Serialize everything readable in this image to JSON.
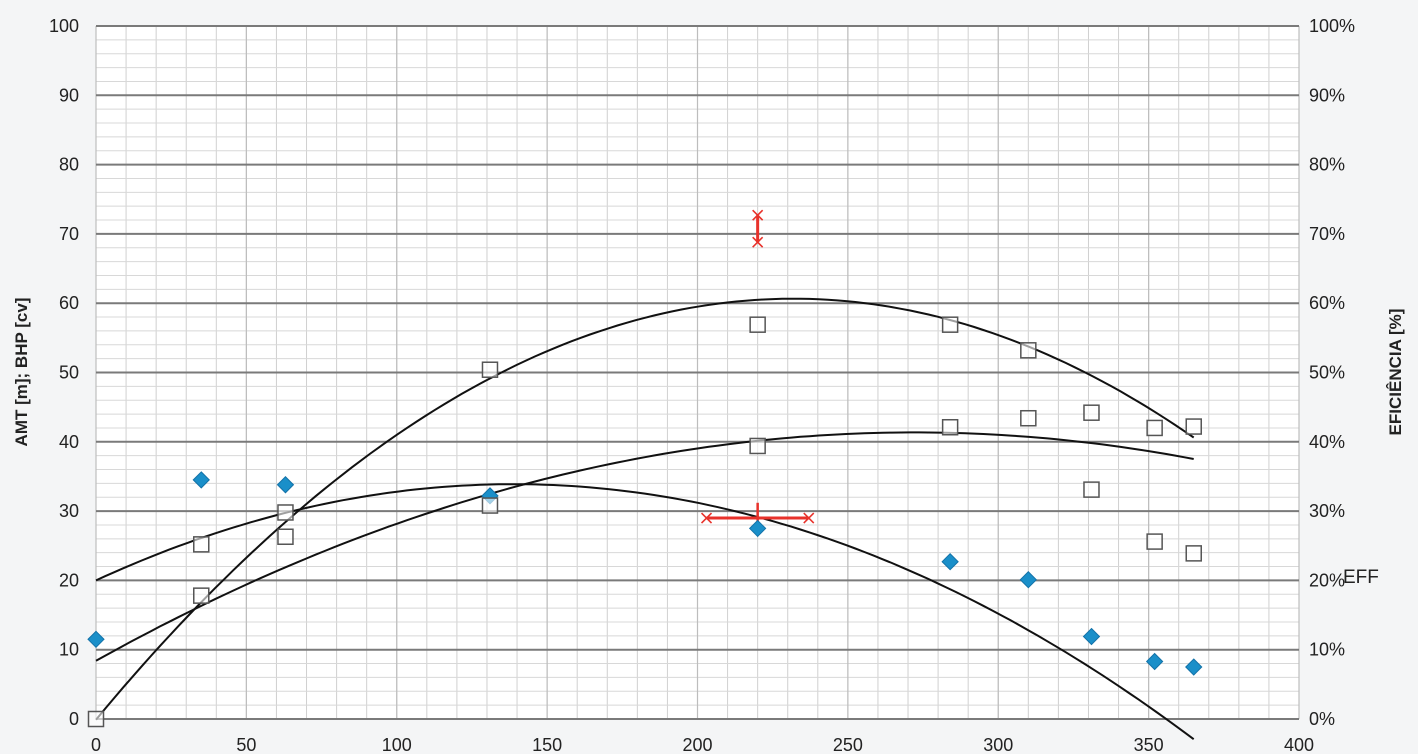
{
  "chart_data": {
    "type": "scatter",
    "title": "",
    "xlabel": "",
    "ylabel": "AMT [m]; BHP [cv]",
    "y2label": "EFICIÊNCIA [%]",
    "xlim": [
      0,
      400
    ],
    "ylim": [
      0,
      100
    ],
    "y2lim": [
      0,
      100
    ],
    "x_ticks": [
      "0",
      "50",
      "100",
      "150",
      "200",
      "250",
      "300",
      "350",
      "400"
    ],
    "y_ticks": [
      "0",
      "10",
      "20",
      "30",
      "40",
      "50",
      "60",
      "70",
      "80",
      "90",
      "100"
    ],
    "y2_ticks": [
      "0%",
      "10%",
      "20%",
      "30%",
      "40%",
      "50%",
      "60%",
      "70%",
      "80%",
      "90%",
      "100%"
    ],
    "grid": true,
    "annotation": "EFF",
    "colors": {
      "blue_points": "#1a8fc9",
      "error_bars": "#e8322b",
      "curves": "#111111",
      "squares": "#555555"
    },
    "series": [
      {
        "marker": "diamond",
        "points": [
          [
            0,
            11.5
          ],
          [
            35,
            34.5
          ],
          [
            63,
            33.8
          ],
          [
            131,
            32.2
          ],
          [
            220,
            27.5
          ],
          [
            284,
            22.7
          ],
          [
            310,
            20.1
          ],
          [
            331,
            11.9
          ],
          [
            352,
            8.3
          ],
          [
            365,
            7.5
          ]
        ]
      },
      {
        "marker": "square",
        "points": [
          [
            0,
            0
          ],
          [
            35,
            25.2
          ],
          [
            35,
            17.8
          ],
          [
            63,
            29.8
          ],
          [
            63,
            26.3
          ],
          [
            131,
            50.4
          ],
          [
            131,
            30.8
          ],
          [
            220,
            56.9
          ],
          [
            220,
            39.4
          ],
          [
            284,
            56.9
          ],
          [
            284,
            42.1
          ],
          [
            310,
            53.2
          ],
          [
            310,
            43.4
          ],
          [
            331,
            44.2
          ],
          [
            331,
            33.1
          ],
          [
            352,
            42.0
          ],
          [
            352,
            25.6
          ],
          [
            365,
            42.2
          ],
          [
            365,
            23.9
          ]
        ]
      }
    ],
    "trendlines": [
      {
        "coeffs": [
          20,
          0.2,
          -0.00072
        ],
        "x_range": [
          0,
          365
        ]
      },
      {
        "coeffs": [
          8.4,
          0.2422,
          -0.000445
        ],
        "x_range": [
          0,
          365
        ]
      },
      {
        "coeffs": [
          -0.1,
          0.524,
          -0.00113
        ],
        "x_range": [
          0,
          365
        ]
      }
    ],
    "error_bars": {
      "vertical": {
        "x": 220,
        "y_low": 68.8,
        "y_high": 72.7
      },
      "horizontal": {
        "y": 29,
        "x_low": 203,
        "x_high": 237,
        "center_y_low": 26.8,
        "center_y_high": 31.2
      }
    }
  }
}
